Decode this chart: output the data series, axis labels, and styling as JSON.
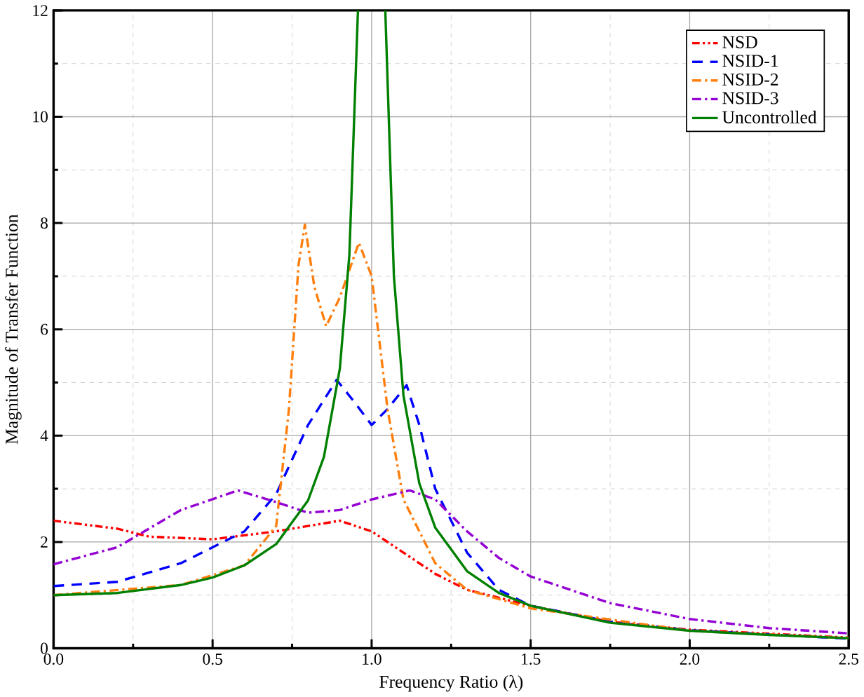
{
  "chart_data": {
    "type": "line",
    "xlabel": "Frequency Ratio (λ)",
    "ylabel": "Magnitude of Transfer Function",
    "xlim": [
      0,
      2.5
    ],
    "ylim": [
      0,
      12
    ],
    "xticks": [
      {
        "value": 0,
        "label": "0.0"
      },
      0.5,
      {
        "value": 1,
        "label": "1.0"
      },
      1.5,
      {
        "value": 2,
        "label": "2.0"
      },
      2.5
    ],
    "yticks": [
      0,
      2,
      4,
      6,
      8,
      10,
      12
    ],
    "grid": true,
    "legend": "top right",
    "marker": "none",
    "series": [
      {
        "name": "NSD",
        "color": "#ff0000",
        "line_style": "dashdotdot",
        "x": [
          0,
          0.2,
          0.3,
          0.5,
          0.7,
          0.9,
          1.0,
          1.1,
          1.2,
          1.3,
          1.5,
          1.75,
          2.0,
          2.5
        ],
        "values": [
          2.4,
          2.25,
          2.1,
          2.05,
          2.2,
          2.4,
          2.2,
          1.8,
          1.4,
          1.1,
          0.8,
          0.5,
          0.35,
          0.2
        ]
      },
      {
        "name": "NSID-1",
        "color": "#0000ff",
        "line_style": "dashed",
        "x": [
          0,
          0.2,
          0.4,
          0.6,
          0.7,
          0.8,
          0.89,
          0.95,
          1.0,
          1.05,
          1.11,
          1.15,
          1.2,
          1.3,
          1.4,
          1.5,
          1.75,
          2.0,
          2.5
        ],
        "values": [
          1.17,
          1.25,
          1.6,
          2.2,
          2.9,
          4.2,
          5.05,
          4.6,
          4.2,
          4.5,
          4.95,
          4.2,
          3.0,
          1.8,
          1.1,
          0.8,
          0.5,
          0.34,
          0.18
        ]
      },
      {
        "name": "NSID-2",
        "color": "#ff7f0e",
        "line_style": "dashdot",
        "x": [
          0,
          0.4,
          0.6,
          0.7,
          0.74,
          0.77,
          0.79,
          0.82,
          0.857,
          0.9,
          0.96,
          1.0,
          1.05,
          1.1,
          1.2,
          1.3,
          1.5,
          2.0,
          2.5
        ],
        "values": [
          1.0,
          1.19,
          1.56,
          2.3,
          4.5,
          7.2,
          7.97,
          6.8,
          6.06,
          6.6,
          7.63,
          7.0,
          4.5,
          2.8,
          1.6,
          1.1,
          0.75,
          0.33,
          0.19
        ]
      },
      {
        "name": "NSID-3",
        "color": "#9400d3",
        "line_style": "dashdot",
        "x": [
          0,
          0.2,
          0.4,
          0.58,
          0.7,
          0.8,
          0.9,
          1.0,
          1.12,
          1.2,
          1.3,
          1.4,
          1.5,
          1.75,
          2.0,
          2.25,
          2.5
        ],
        "values": [
          1.58,
          1.9,
          2.6,
          2.97,
          2.75,
          2.55,
          2.6,
          2.8,
          2.97,
          2.8,
          2.2,
          1.7,
          1.35,
          0.85,
          0.55,
          0.38,
          0.28
        ]
      },
      {
        "name": "Uncontrolled",
        "color": "#008000",
        "line_style": "solid",
        "x": [
          0,
          0.2,
          0.4,
          0.5,
          0.6,
          0.7,
          0.8,
          0.85,
          0.9,
          0.93,
          0.957,
          1.0,
          1.043,
          1.07,
          1.1,
          1.15,
          1.2,
          1.3,
          1.4,
          1.5,
          1.75,
          2.0,
          2.25,
          2.5
        ],
        "values": [
          1.0,
          1.04,
          1.19,
          1.33,
          1.56,
          1.96,
          2.78,
          3.6,
          5.26,
          7.4,
          12,
          null,
          12,
          7.0,
          4.76,
          3.1,
          2.27,
          1.45,
          1.04,
          0.8,
          0.48,
          0.33,
          0.25,
          0.19
        ]
      }
    ]
  }
}
